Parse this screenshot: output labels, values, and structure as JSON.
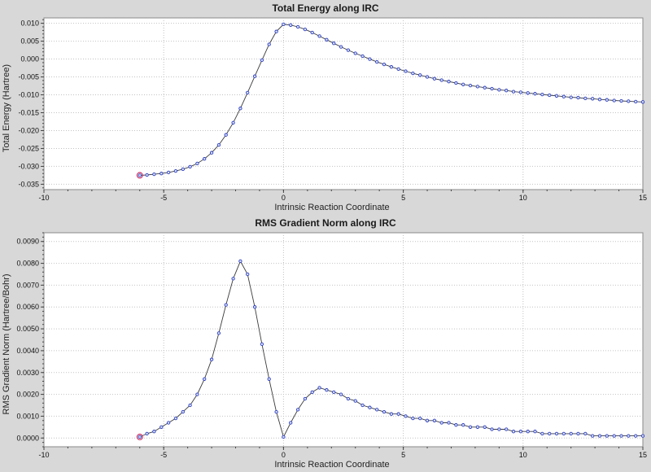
{
  "style": {
    "page_bg": "#d8d8d8",
    "plot_bg": "#ffffff",
    "frame": "#8a8a8a",
    "grid": "#c2c2c2",
    "axis": "#444444",
    "text": "#111111",
    "line": "#3a3a3a",
    "marker": "#2f3fbf",
    "marker_fill": "#d9e2f8",
    "first_marker": "#cc3366"
  },
  "chart_data": [
    {
      "type": "line",
      "title": "Total Energy along IRC",
      "xlabel": "Intrinsic Reaction Coordinate",
      "ylabel": "Total Energy (Hartree)",
      "xlim": [
        -10,
        15
      ],
      "ylim": [
        -0.0365,
        0.0115
      ],
      "xticks": [
        -10,
        -5,
        0,
        5,
        10,
        15
      ],
      "yticks": [
        0.01,
        0.005,
        0.0,
        -0.005,
        -0.01,
        -0.015,
        -0.02,
        -0.025,
        -0.03,
        -0.035
      ],
      "xtick_decimals": 0,
      "ytick_decimals": 3,
      "x_minor_step": 1,
      "y_minor_step": 0.001,
      "grid": true,
      "legend": null,
      "x": [
        -6.0,
        -5.7,
        -5.4,
        -5.1,
        -4.8,
        -4.5,
        -4.2,
        -3.9,
        -3.6,
        -3.3,
        -3.0,
        -2.7,
        -2.4,
        -2.1,
        -1.8,
        -1.5,
        -1.2,
        -0.9,
        -0.6,
        -0.3,
        0.0,
        0.3,
        0.6,
        0.9,
        1.2,
        1.5,
        1.8,
        2.1,
        2.4,
        2.7,
        3.0,
        3.3,
        3.6,
        3.9,
        4.2,
        4.5,
        4.8,
        5.1,
        5.4,
        5.7,
        6.0,
        6.3,
        6.6,
        6.9,
        7.2,
        7.5,
        7.8,
        8.1,
        8.4,
        8.7,
        9.0,
        9.3,
        9.6,
        9.9,
        10.2,
        10.5,
        10.8,
        11.1,
        11.4,
        11.7,
        12.0,
        12.3,
        12.6,
        12.9,
        13.2,
        13.5,
        13.8,
        14.1,
        14.4,
        14.7,
        15.0
      ],
      "y": [
        -0.0325,
        -0.0324,
        -0.0322,
        -0.032,
        -0.0317,
        -0.0313,
        -0.0308,
        -0.0301,
        -0.0292,
        -0.0279,
        -0.0262,
        -0.024,
        -0.0212,
        -0.0178,
        -0.0138,
        -0.0094,
        -0.0048,
        -0.0003,
        0.0041,
        0.0077,
        0.0097,
        0.0095,
        0.009,
        0.0083,
        0.0074,
        0.0064,
        0.0054,
        0.0044,
        0.0034,
        0.0025,
        0.0016,
        0.0008,
        0.0,
        -0.0008,
        -0.0015,
        -0.0022,
        -0.0028,
        -0.0034,
        -0.004,
        -0.0045,
        -0.005,
        -0.0055,
        -0.0059,
        -0.0063,
        -0.0067,
        -0.0071,
        -0.0074,
        -0.0077,
        -0.008,
        -0.0083,
        -0.0086,
        -0.0088,
        -0.0091,
        -0.0093,
        -0.0095,
        -0.0097,
        -0.0099,
        -0.0101,
        -0.0103,
        -0.0105,
        -0.0107,
        -0.0108,
        -0.011,
        -0.0111,
        -0.0113,
        -0.0114,
        -0.0116,
        -0.0117,
        -0.0118,
        -0.0119,
        -0.012
      ]
    },
    {
      "type": "line",
      "title": "RMS Gradient Norm along IRC",
      "xlabel": "Intrinsic Reaction Coordinate",
      "ylabel": "RMS Gradient Norm (Hartree/Bohr)",
      "xlim": [
        -10,
        15
      ],
      "ylim": [
        -0.0004,
        0.0094
      ],
      "xticks": [
        -10,
        -5,
        0,
        5,
        10,
        15
      ],
      "yticks": [
        0.009,
        0.008,
        0.007,
        0.006,
        0.005,
        0.004,
        0.003,
        0.002,
        0.001,
        0.0
      ],
      "xtick_decimals": 0,
      "ytick_decimals": 4,
      "x_minor_step": 1,
      "y_minor_step": 0.0002,
      "grid": true,
      "legend": null,
      "x": [
        -6.0,
        -5.7,
        -5.4,
        -5.1,
        -4.8,
        -4.5,
        -4.2,
        -3.9,
        -3.6,
        -3.3,
        -3.0,
        -2.7,
        -2.4,
        -2.1,
        -1.8,
        -1.5,
        -1.2,
        -0.9,
        -0.6,
        -0.3,
        0.0,
        0.3,
        0.6,
        0.9,
        1.2,
        1.5,
        1.8,
        2.1,
        2.4,
        2.7,
        3.0,
        3.3,
        3.6,
        3.9,
        4.2,
        4.5,
        4.8,
        5.1,
        5.4,
        5.7,
        6.0,
        6.3,
        6.6,
        6.9,
        7.2,
        7.5,
        7.8,
        8.1,
        8.4,
        8.7,
        9.0,
        9.3,
        9.6,
        9.9,
        10.2,
        10.5,
        10.8,
        11.1,
        11.4,
        11.7,
        12.0,
        12.3,
        12.6,
        12.9,
        13.2,
        13.5,
        13.8,
        14.1,
        14.4,
        14.7,
        15.0
      ],
      "y": [
        5e-05,
        0.0002,
        0.0003,
        0.0005,
        0.0007,
        0.0009,
        0.0012,
        0.0015,
        0.002,
        0.0027,
        0.0036,
        0.0048,
        0.0061,
        0.0073,
        0.0081,
        0.0075,
        0.006,
        0.0043,
        0.0027,
        0.0012,
        5e-05,
        0.0007,
        0.0013,
        0.0018,
        0.0021,
        0.0023,
        0.0022,
        0.0021,
        0.002,
        0.0018,
        0.0017,
        0.0015,
        0.0014,
        0.0013,
        0.0012,
        0.0011,
        0.0011,
        0.001,
        0.0009,
        0.0009,
        0.0008,
        0.0008,
        0.0007,
        0.0007,
        0.0006,
        0.0006,
        0.0005,
        0.0005,
        0.0005,
        0.0004,
        0.0004,
        0.0004,
        0.0003,
        0.0003,
        0.0003,
        0.0003,
        0.0002,
        0.0002,
        0.0002,
        0.0002,
        0.0002,
        0.0002,
        0.0002,
        0.0001,
        0.0001,
        0.0001,
        0.0001,
        0.0001,
        0.0001,
        0.0001,
        0.0001
      ]
    }
  ]
}
